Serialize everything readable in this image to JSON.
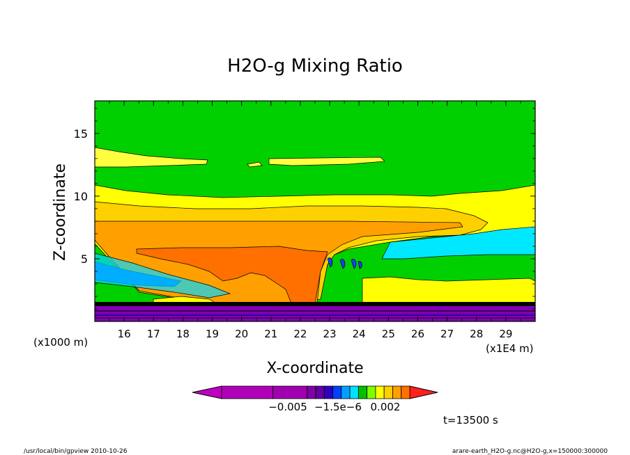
{
  "chart_data": {
    "type": "heatmap",
    "title": "H2O-g Mixing Ratio",
    "xlabel": "X-coordinate",
    "ylabel": "Z-coordinate",
    "x_unit_left": "(x1000 m)",
    "x_unit_right": "(x1E4 m)",
    "xlim": [
      15.0,
      30.0
    ],
    "ylim": [
      0.0,
      17.6
    ],
    "x_ticks": [
      "16",
      "17",
      "18",
      "19",
      "20",
      "21",
      "22",
      "23",
      "24",
      "25",
      "26",
      "27",
      "28",
      "29"
    ],
    "x_tick_values": [
      16,
      17,
      18,
      19,
      20,
      21,
      22,
      23,
      24,
      25,
      26,
      27,
      28,
      29
    ],
    "y_ticks": [
      "5",
      "10",
      "15"
    ],
    "y_tick_values": [
      5,
      10,
      15
    ],
    "colorbar": {
      "labels": [
        "−0.005",
        "−1.5e−6",
        "0.002"
      ],
      "colors": [
        "#c000c0",
        "#b000b8",
        "#a000b0",
        "#8000a8",
        "#6000a0",
        "#3000c0",
        "#0040ff",
        "#00a0ff",
        "#00e0ff",
        "#00c000",
        "#80ff00",
        "#ffff00",
        "#ffd000",
        "#ffa000",
        "#ff7000",
        "#ff2020"
      ]
    },
    "time_label": "t=13500 s",
    "footer_left": "/usr/local/bin/gpview  2010-10-26",
    "footer_right": "arare-earth_H2O-g.nc@H2O-g,x=150000:300000"
  }
}
